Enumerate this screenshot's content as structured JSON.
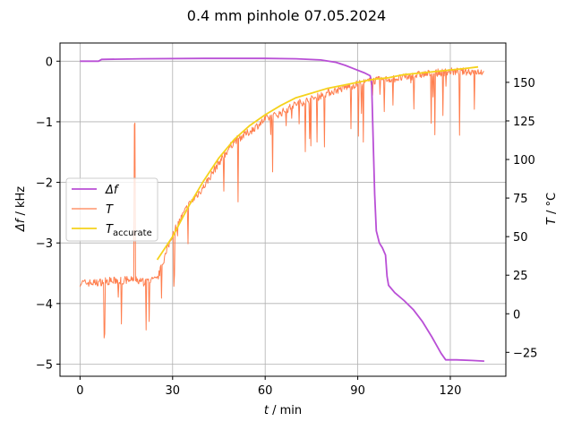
{
  "chart_data": {
    "type": "line",
    "title": "0.4 mm pinhole 07.05.2024",
    "xlabel": {
      "var": "t",
      "unit": " / min"
    },
    "ylabel_left": {
      "var": "Δf",
      "unit": " / kHz"
    },
    "ylabel_right": {
      "var": "T",
      "unit": " / °C"
    },
    "xlim": [
      -6.5,
      138
    ],
    "ylim_left": [
      -5.2,
      0.3
    ],
    "ylim_right": [
      -40.5,
      175.5
    ],
    "xticks": [
      0,
      30,
      60,
      90,
      120
    ],
    "yticks_left": [
      0,
      -1,
      -2,
      -3,
      -4,
      -5
    ],
    "yticks_left_labels": [
      "0",
      "−1",
      "−2",
      "−3",
      "−4",
      "−5"
    ],
    "yticks_right": [
      -25,
      0,
      25,
      50,
      75,
      100,
      125,
      150
    ],
    "yticks_right_labels": [
      "−25",
      "0",
      "25",
      "50",
      "75",
      "100",
      "125",
      "150"
    ],
    "grid": true,
    "legend_position": "center-left",
    "series": [
      {
        "name": "Δf",
        "axis": "left",
        "color": "#b94fd6",
        "points": [
          [
            0,
            0
          ],
          [
            6,
            0
          ],
          [
            7,
            0.03
          ],
          [
            20,
            0.04
          ],
          [
            40,
            0.045
          ],
          [
            60,
            0.045
          ],
          [
            70,
            0.04
          ],
          [
            78,
            0.02
          ],
          [
            83,
            -0.02
          ],
          [
            86,
            -0.07
          ],
          [
            89,
            -0.13
          ],
          [
            92,
            -0.19
          ],
          [
            94,
            -0.24
          ],
          [
            94.5,
            -0.35
          ],
          [
            95,
            -1.3
          ],
          [
            95.5,
            -2.2
          ],
          [
            96,
            -2.8
          ],
          [
            97,
            -3.0
          ],
          [
            98,
            -3.08
          ],
          [
            99,
            -3.2
          ],
          [
            99.5,
            -3.55
          ],
          [
            100,
            -3.7
          ],
          [
            102,
            -3.82
          ],
          [
            105,
            -3.95
          ],
          [
            108,
            -4.1
          ],
          [
            111,
            -4.3
          ],
          [
            114,
            -4.55
          ],
          [
            117,
            -4.82
          ],
          [
            118.5,
            -4.93
          ],
          [
            122,
            -4.93
          ],
          [
            127,
            -4.94
          ],
          [
            131,
            -4.95
          ]
        ]
      },
      {
        "name": "T",
        "axis": "right",
        "color": "#ff7f4f",
        "noise": true,
        "base": [
          [
            0,
            20
          ],
          [
            5,
            20
          ],
          [
            8,
            21
          ],
          [
            17,
            22
          ],
          [
            20,
            21
          ],
          [
            25,
            22
          ],
          [
            30,
            52
          ],
          [
            35,
            70
          ],
          [
            40,
            82
          ],
          [
            45,
            98
          ],
          [
            50,
            112
          ],
          [
            55,
            118
          ],
          [
            60,
            126
          ],
          [
            65,
            130
          ],
          [
            70,
            136
          ],
          [
            75,
            139
          ],
          [
            80,
            143
          ],
          [
            85,
            146
          ],
          [
            90,
            149
          ],
          [
            95,
            151
          ],
          [
            100,
            152
          ],
          [
            105,
            153
          ],
          [
            110,
            155
          ],
          [
            115,
            156
          ],
          [
            120,
            157
          ],
          [
            125,
            157
          ],
          [
            131,
            157
          ]
        ]
      },
      {
        "name": "T_accurate",
        "axis": "right",
        "color": "#f5d21c",
        "points": [
          [
            25,
            35
          ],
          [
            30,
            50
          ],
          [
            35,
            69
          ],
          [
            40,
            86
          ],
          [
            45,
            101
          ],
          [
            50,
            113
          ],
          [
            55,
            122
          ],
          [
            60,
            129
          ],
          [
            65,
            135
          ],
          [
            70,
            140
          ],
          [
            75,
            143
          ],
          [
            80,
            146
          ],
          [
            85,
            148
          ],
          [
            90,
            150
          ],
          [
            95,
            152
          ],
          [
            100,
            153
          ],
          [
            105,
            155
          ],
          [
            110,
            156
          ],
          [
            115,
            157
          ],
          [
            120,
            158
          ],
          [
            125,
            159
          ],
          [
            129,
            160
          ]
        ]
      }
    ]
  }
}
